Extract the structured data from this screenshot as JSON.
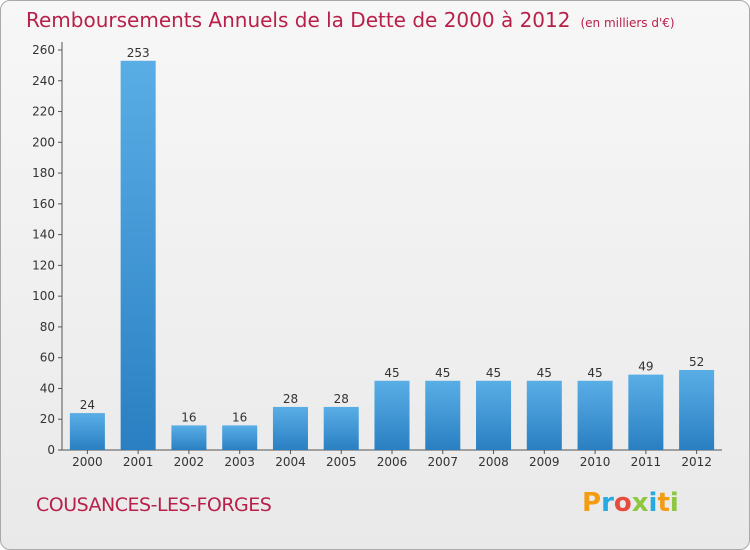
{
  "header": {
    "title": "Remboursements Annuels de la Dette de 2000 à 2012",
    "unit": "(en milliers d'€)"
  },
  "footer": {
    "place": "COUSANCES-LES-FORGES",
    "logo": "Proxiti"
  },
  "colors": {
    "title": "#b8204a",
    "bar_light": "#5aaee6",
    "bar_dark": "#2a7fc2",
    "logo_letters": [
      "#f39c12",
      "#27a9e1",
      "#e84c3d",
      "#8dc63f",
      "#27a9e1",
      "#f39c12",
      "#8dc63f"
    ]
  },
  "chart_data": {
    "type": "bar",
    "title": "Remboursements Annuels de la Dette de 2000 à 2012",
    "xlabel": "",
    "ylabel": "",
    "categories": [
      "2000",
      "2001",
      "2002",
      "2003",
      "2004",
      "2005",
      "2006",
      "2007",
      "2008",
      "2009",
      "2010",
      "2011",
      "2012"
    ],
    "values": [
      24,
      253,
      16,
      16,
      28,
      28,
      45,
      45,
      45,
      45,
      45,
      49,
      52
    ],
    "ylim": [
      0,
      260
    ],
    "yticks": [
      0,
      20,
      40,
      60,
      80,
      100,
      120,
      140,
      160,
      180,
      200,
      220,
      240,
      260
    ],
    "grid": false,
    "data_labels": true
  }
}
